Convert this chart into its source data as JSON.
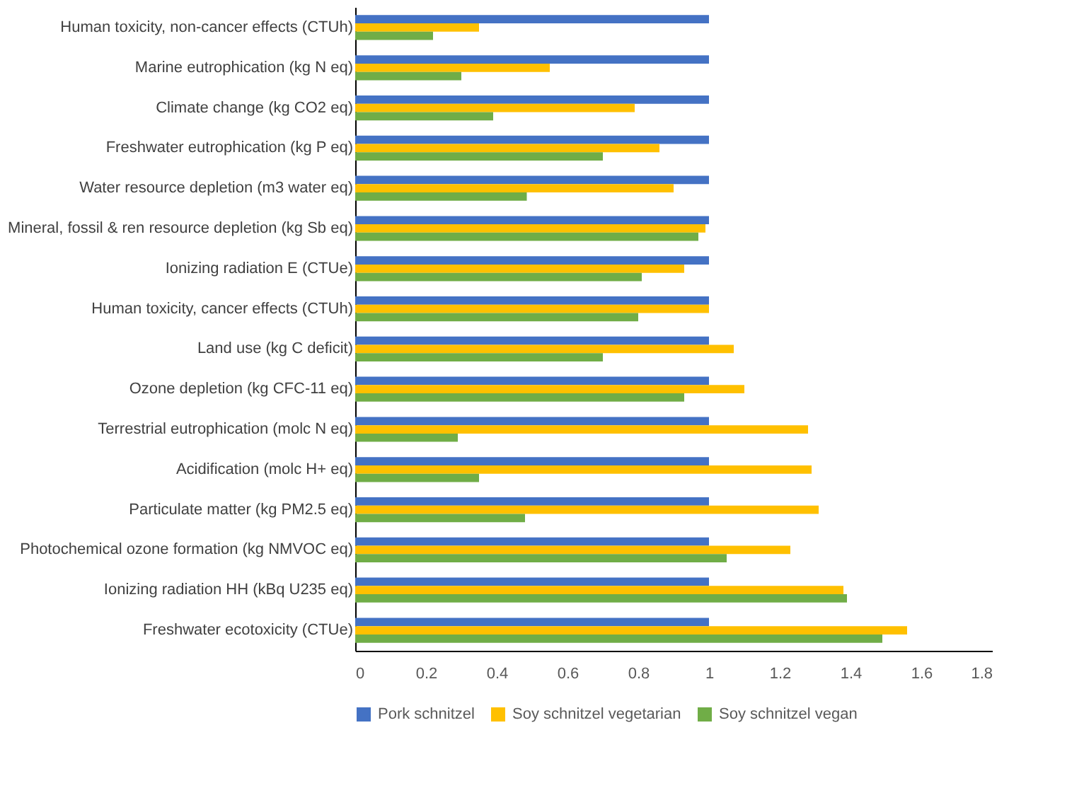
{
  "chart_data": {
    "type": "bar",
    "orientation": "horizontal",
    "categories": [
      "Human toxicity, non-cancer effects (CTUh)",
      "Marine eutrophication (kg N eq)",
      "Climate change (kg CO2 eq)",
      "Freshwater eutrophication (kg P eq)",
      "Water resource depletion (m3 water eq)",
      "Mineral, fossil & ren resource depletion (kg Sb eq)",
      "Ionizing radiation E (CTUe)",
      "Human toxicity, cancer effects (CTUh)",
      "Land use (kg C deficit)",
      "Ozone depletion (kg CFC-11 eq)",
      "Terrestrial eutrophication (molc N eq)",
      "Acidification (molc H+ eq)",
      "Particulate matter (kg PM2.5 eq)",
      "Photochemical ozone formation (kg NMVOC eq)",
      "Ionizing radiation HH (kBq U235 eq)",
      "Freshwater ecotoxicity (CTUe)"
    ],
    "series": [
      {
        "name": "Pork schnitzel",
        "color": "#4472c4",
        "values": [
          1,
          1,
          1,
          1,
          1,
          1,
          1,
          1,
          1,
          1,
          1,
          1,
          1,
          1,
          1,
          1
        ]
      },
      {
        "name": "Soy schnitzel vegetarian",
        "color": "#ffc000",
        "values": [
          0.35,
          0.55,
          0.79,
          0.86,
          0.9,
          0.99,
          0.93,
          1.0,
          1.07,
          1.1,
          1.28,
          1.29,
          1.31,
          1.23,
          1.38,
          1.56
        ]
      },
      {
        "name": "Soy schnitzel vegan",
        "color": "#70ad47",
        "values": [
          0.22,
          0.3,
          0.39,
          0.7,
          0.485,
          0.97,
          0.81,
          0.8,
          0.7,
          0.93,
          0.29,
          0.35,
          0.48,
          1.05,
          1.39,
          1.49
        ]
      }
    ],
    "xlim": [
      0,
      1.8
    ],
    "xticks": [
      0,
      0.2,
      0.4,
      0.6,
      0.8,
      1,
      1.2,
      1.4,
      1.6,
      1.8
    ],
    "grid": false,
    "legend": "bottom"
  }
}
